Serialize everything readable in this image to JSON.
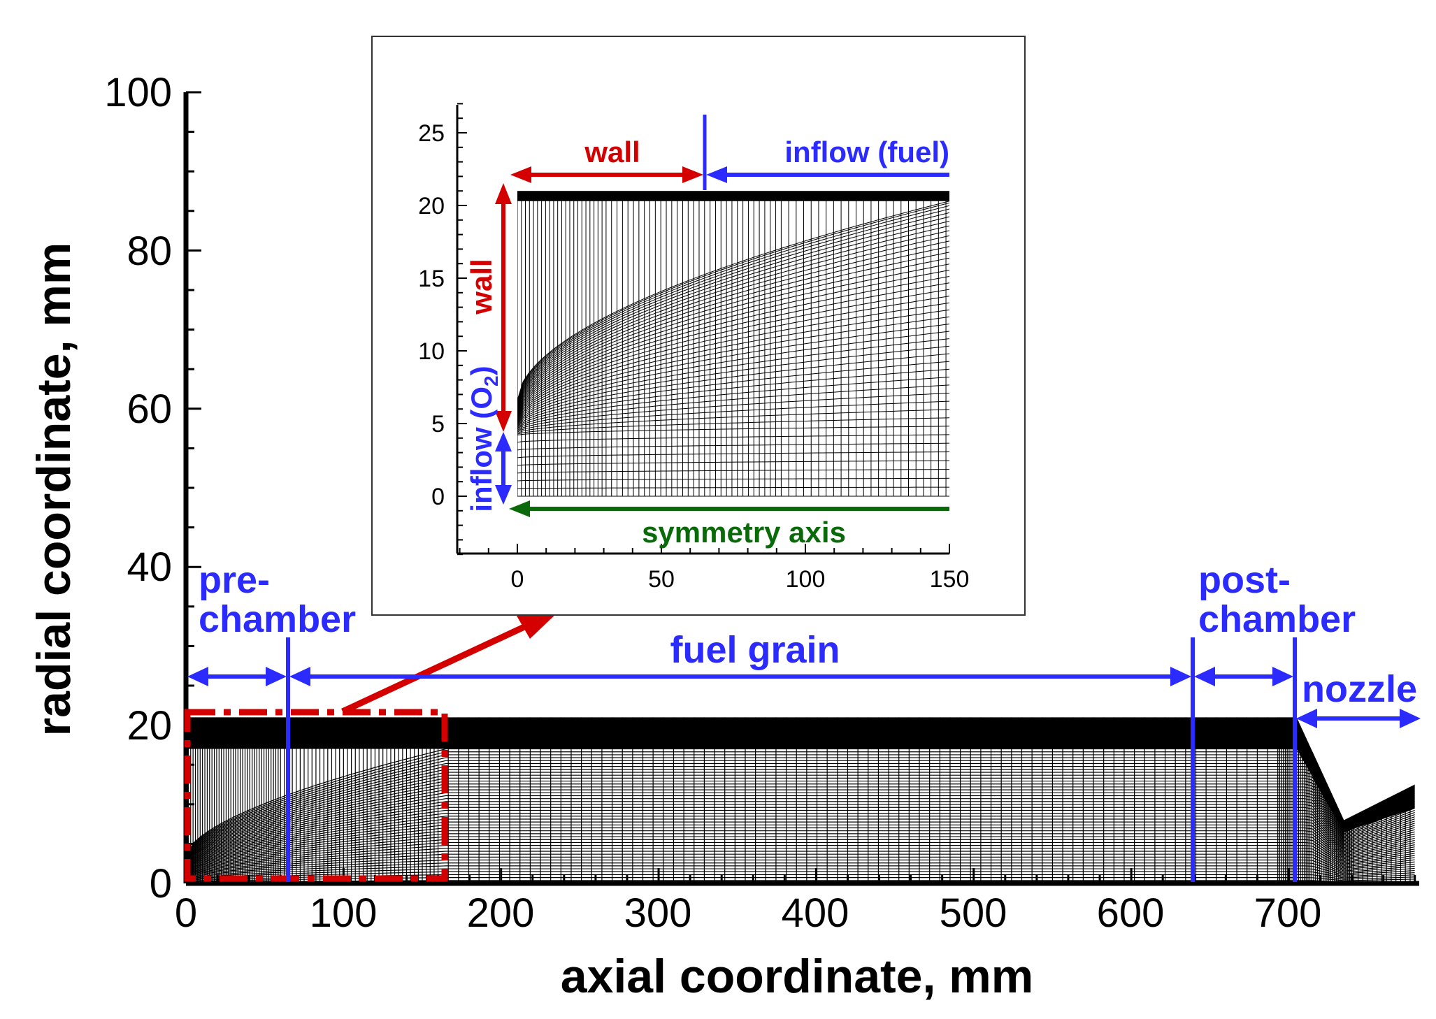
{
  "main_axes": {
    "xlabel": "axial coordinate, mm",
    "ylabel": "radial coordinate, mm",
    "xlim": [
      0,
      780
    ],
    "ylim": [
      0,
      100
    ],
    "x_ticks": [
      "0",
      "100",
      "200",
      "300",
      "400",
      "500",
      "600",
      "700"
    ],
    "y_ticks": [
      "0",
      "20",
      "40",
      "60",
      "80",
      "100"
    ]
  },
  "regions": {
    "pre_chamber": {
      "line1": "pre-",
      "line2": "chamber",
      "start_mm": 0,
      "end_mm": 65
    },
    "fuel_grain": {
      "label": "fuel grain",
      "start_mm": 65,
      "end_mm": 640
    },
    "post_chamber": {
      "line1": "post-",
      "line2": "chamber",
      "start_mm": 640,
      "end_mm": 705
    },
    "nozzle": {
      "label": "nozzle",
      "start_mm": 705,
      "end_mm": 780
    }
  },
  "geometry": {
    "chamber_radius_mm": 21,
    "nozzle_throat_x_mm": 735,
    "nozzle_throat_radius_mm": 8,
    "nozzle_exit_radius_mm": 12.5,
    "zoom_box_x_mm": [
      0,
      165
    ]
  },
  "inset": {
    "xlim": [
      -20,
      150
    ],
    "ylim": [
      -4,
      27
    ],
    "x_ticks": [
      "0",
      "50",
      "100",
      "150"
    ],
    "y_ticks": [
      "0",
      "5",
      "10",
      "15",
      "20",
      "25"
    ],
    "wall_top": "wall",
    "inflow_fuel": "inflow (fuel)",
    "wall_left": "wall",
    "inflow_o2": "inflow (O",
    "inflow_o2_sub": "2",
    "inflow_o2_close": ")",
    "symmetry_axis": "symmetry axis"
  },
  "colors": {
    "blue": "#2b2bff",
    "red": "#d40000",
    "green": "#0a6a0a",
    "mesh": "#000000"
  }
}
